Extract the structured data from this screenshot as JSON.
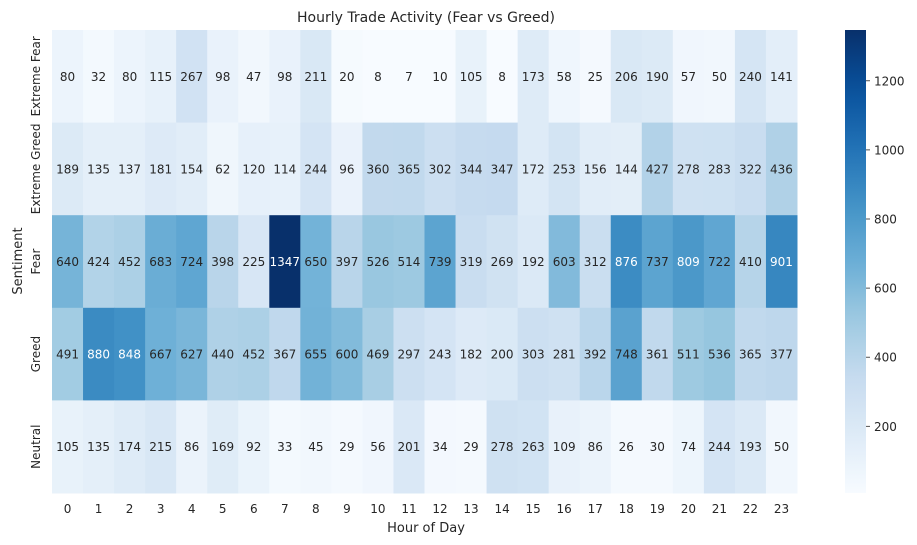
{
  "chart_data": {
    "type": "heatmap",
    "title": "Hourly Trade Activity (Fear vs Greed)",
    "xlabel": "Hour of Day",
    "ylabel": "Sentiment",
    "x": [
      "0",
      "1",
      "2",
      "3",
      "4",
      "5",
      "6",
      "7",
      "8",
      "9",
      "10",
      "11",
      "12",
      "13",
      "14",
      "15",
      "16",
      "17",
      "18",
      "19",
      "20",
      "21",
      "22",
      "23"
    ],
    "y": [
      "Extreme Fear",
      "Extreme Greed",
      "Fear",
      "Greed",
      "Neutral"
    ],
    "values": [
      [
        80,
        32,
        80,
        115,
        267,
        98,
        47,
        98,
        211,
        20,
        8,
        7,
        10,
        105,
        8,
        173,
        58,
        25,
        206,
        190,
        57,
        50,
        240,
        141
      ],
      [
        189,
        135,
        137,
        181,
        154,
        62,
        120,
        114,
        244,
        96,
        360,
        365,
        302,
        344,
        347,
        172,
        253,
        156,
        144,
        427,
        278,
        283,
        322,
        436
      ],
      [
        640,
        424,
        452,
        683,
        724,
        398,
        225,
        1347,
        650,
        397,
        526,
        514,
        739,
        319,
        269,
        192,
        603,
        312,
        876,
        737,
        809,
        722,
        410,
        901
      ],
      [
        491,
        880,
        848,
        667,
        627,
        440,
        452,
        367,
        655,
        600,
        469,
        297,
        243,
        182,
        200,
        303,
        281,
        392,
        748,
        361,
        511,
        536,
        365,
        377
      ],
      [
        105,
        135,
        174,
        215,
        86,
        169,
        92,
        33,
        45,
        29,
        56,
        201,
        34,
        29,
        278,
        263,
        109,
        86,
        26,
        30,
        74,
        244,
        193,
        50
      ]
    ],
    "colormap": "Blues",
    "vmin": 7,
    "vmax": 1347,
    "colorbar_ticks": [
      "200",
      "400",
      "600",
      "800",
      "1000",
      "1200"
    ],
    "colorbar_tick_values": [
      200,
      400,
      600,
      800,
      1000,
      1200
    ]
  }
}
